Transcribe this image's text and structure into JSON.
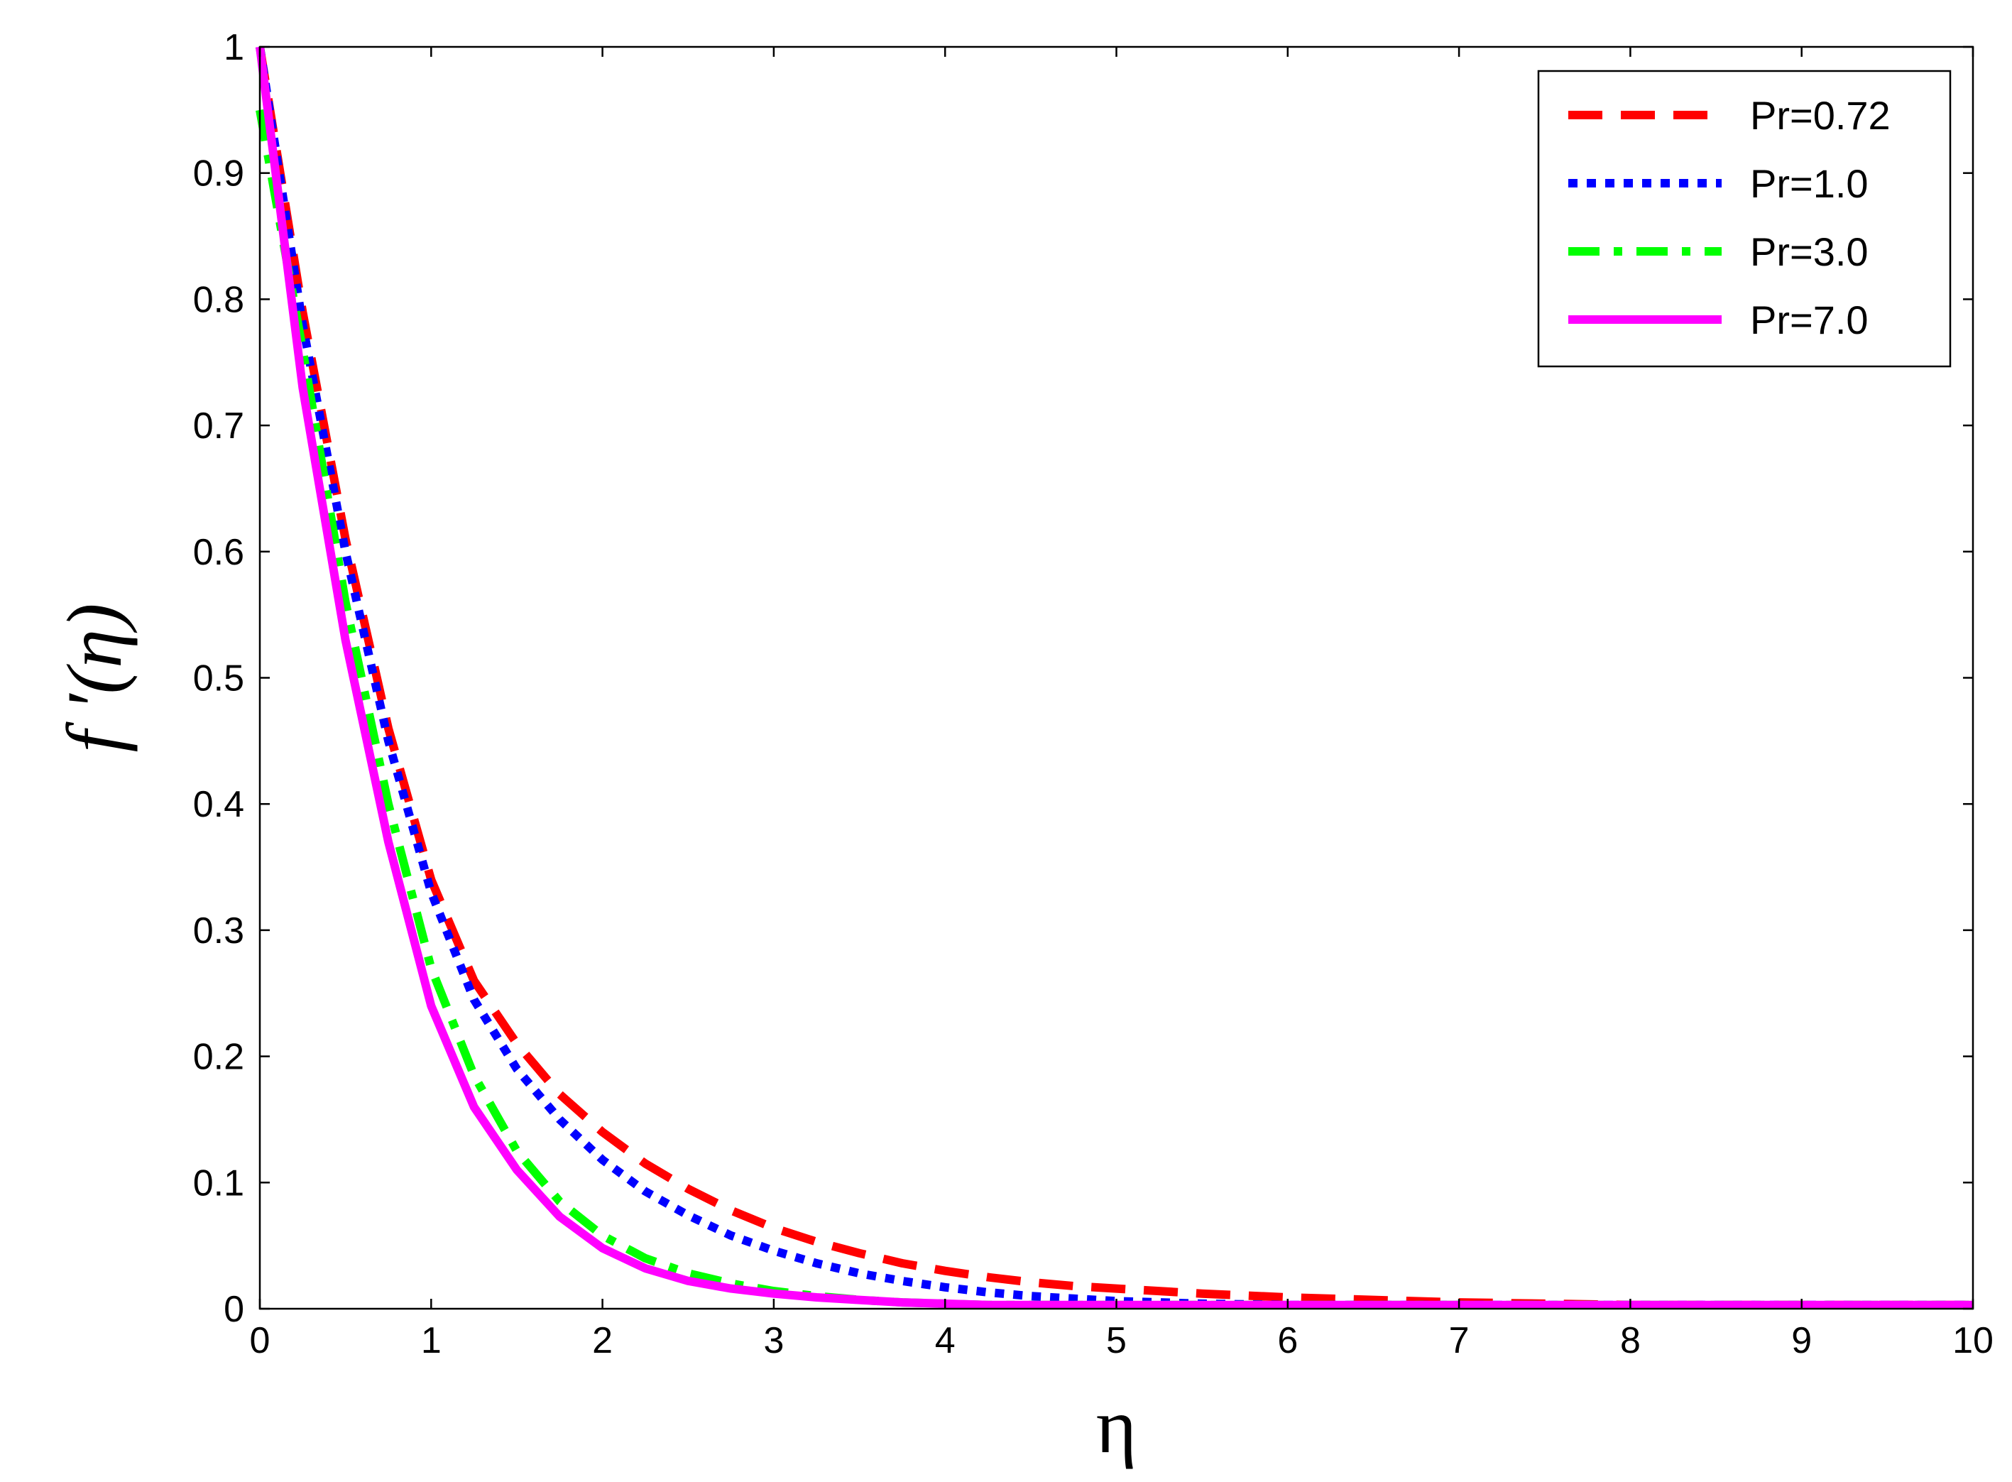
{
  "chart_data": {
    "type": "line",
    "title": "",
    "xlabel": "η",
    "ylabel": "f ′(η)",
    "xlim": [
      0,
      10
    ],
    "ylim": [
      0,
      1
    ],
    "xticks": [
      "0",
      "1",
      "2",
      "3",
      "4",
      "5",
      "6",
      "7",
      "8",
      "9",
      "10"
    ],
    "yticks": [
      "0",
      "0.1",
      "0.2",
      "0.3",
      "0.4",
      "0.5",
      "0.6",
      "0.7",
      "0.8",
      "0.9",
      "1"
    ],
    "grid": false,
    "legend_position": "top-right",
    "x": [
      0,
      0.25,
      0.5,
      0.75,
      1.0,
      1.25,
      1.5,
      1.75,
      2.0,
      2.25,
      2.5,
      2.75,
      3.0,
      3.25,
      3.5,
      3.75,
      4.0,
      4.25,
      4.5,
      4.75,
      5.0,
      5.5,
      6.0,
      6.5,
      7.0,
      7.5,
      8.0,
      8.5,
      9.0,
      9.5,
      10.0
    ],
    "series": [
      {
        "name": "Pr=0.72",
        "color": "#ff0000",
        "style": "dashed",
        "values": [
          1.0,
          0.79,
          0.61,
          0.46,
          0.34,
          0.26,
          0.21,
          0.17,
          0.14,
          0.115,
          0.095,
          0.078,
          0.064,
          0.053,
          0.044,
          0.036,
          0.03,
          0.025,
          0.021,
          0.018,
          0.016,
          0.012,
          0.009,
          0.007,
          0.005,
          0.004,
          0.003,
          0.003,
          0.003,
          0.003,
          0.003
        ]
      },
      {
        "name": "Pr=1.0",
        "color": "#0000ff",
        "style": "dotted",
        "values": [
          1.0,
          0.78,
          0.6,
          0.45,
          0.33,
          0.245,
          0.19,
          0.15,
          0.118,
          0.093,
          0.074,
          0.058,
          0.046,
          0.036,
          0.028,
          0.022,
          0.017,
          0.013,
          0.01,
          0.008,
          0.006,
          0.004,
          0.003,
          0.003,
          0.003,
          0.003,
          0.003,
          0.003,
          0.003,
          0.003,
          0.003
        ]
      },
      {
        "name": "Pr=3.0",
        "color": "#00ff00",
        "style": "dashdot",
        "values": [
          0.95,
          0.76,
          0.56,
          0.4,
          0.27,
          0.185,
          0.125,
          0.085,
          0.058,
          0.04,
          0.028,
          0.02,
          0.014,
          0.01,
          0.007,
          0.005,
          0.004,
          0.003,
          0.003,
          0.003,
          0.003,
          0.003,
          0.003,
          0.003,
          0.003,
          0.003,
          0.003,
          0.003,
          0.003,
          0.003,
          0.003
        ]
      },
      {
        "name": "Pr=7.0",
        "color": "#ff00ff",
        "style": "solid",
        "values": [
          1.0,
          0.73,
          0.53,
          0.37,
          0.24,
          0.16,
          0.11,
          0.073,
          0.048,
          0.032,
          0.022,
          0.016,
          0.012,
          0.009,
          0.007,
          0.005,
          0.004,
          0.003,
          0.003,
          0.003,
          0.003,
          0.003,
          0.003,
          0.003,
          0.003,
          0.003,
          0.003,
          0.003,
          0.003,
          0.003,
          0.003
        ]
      }
    ]
  }
}
